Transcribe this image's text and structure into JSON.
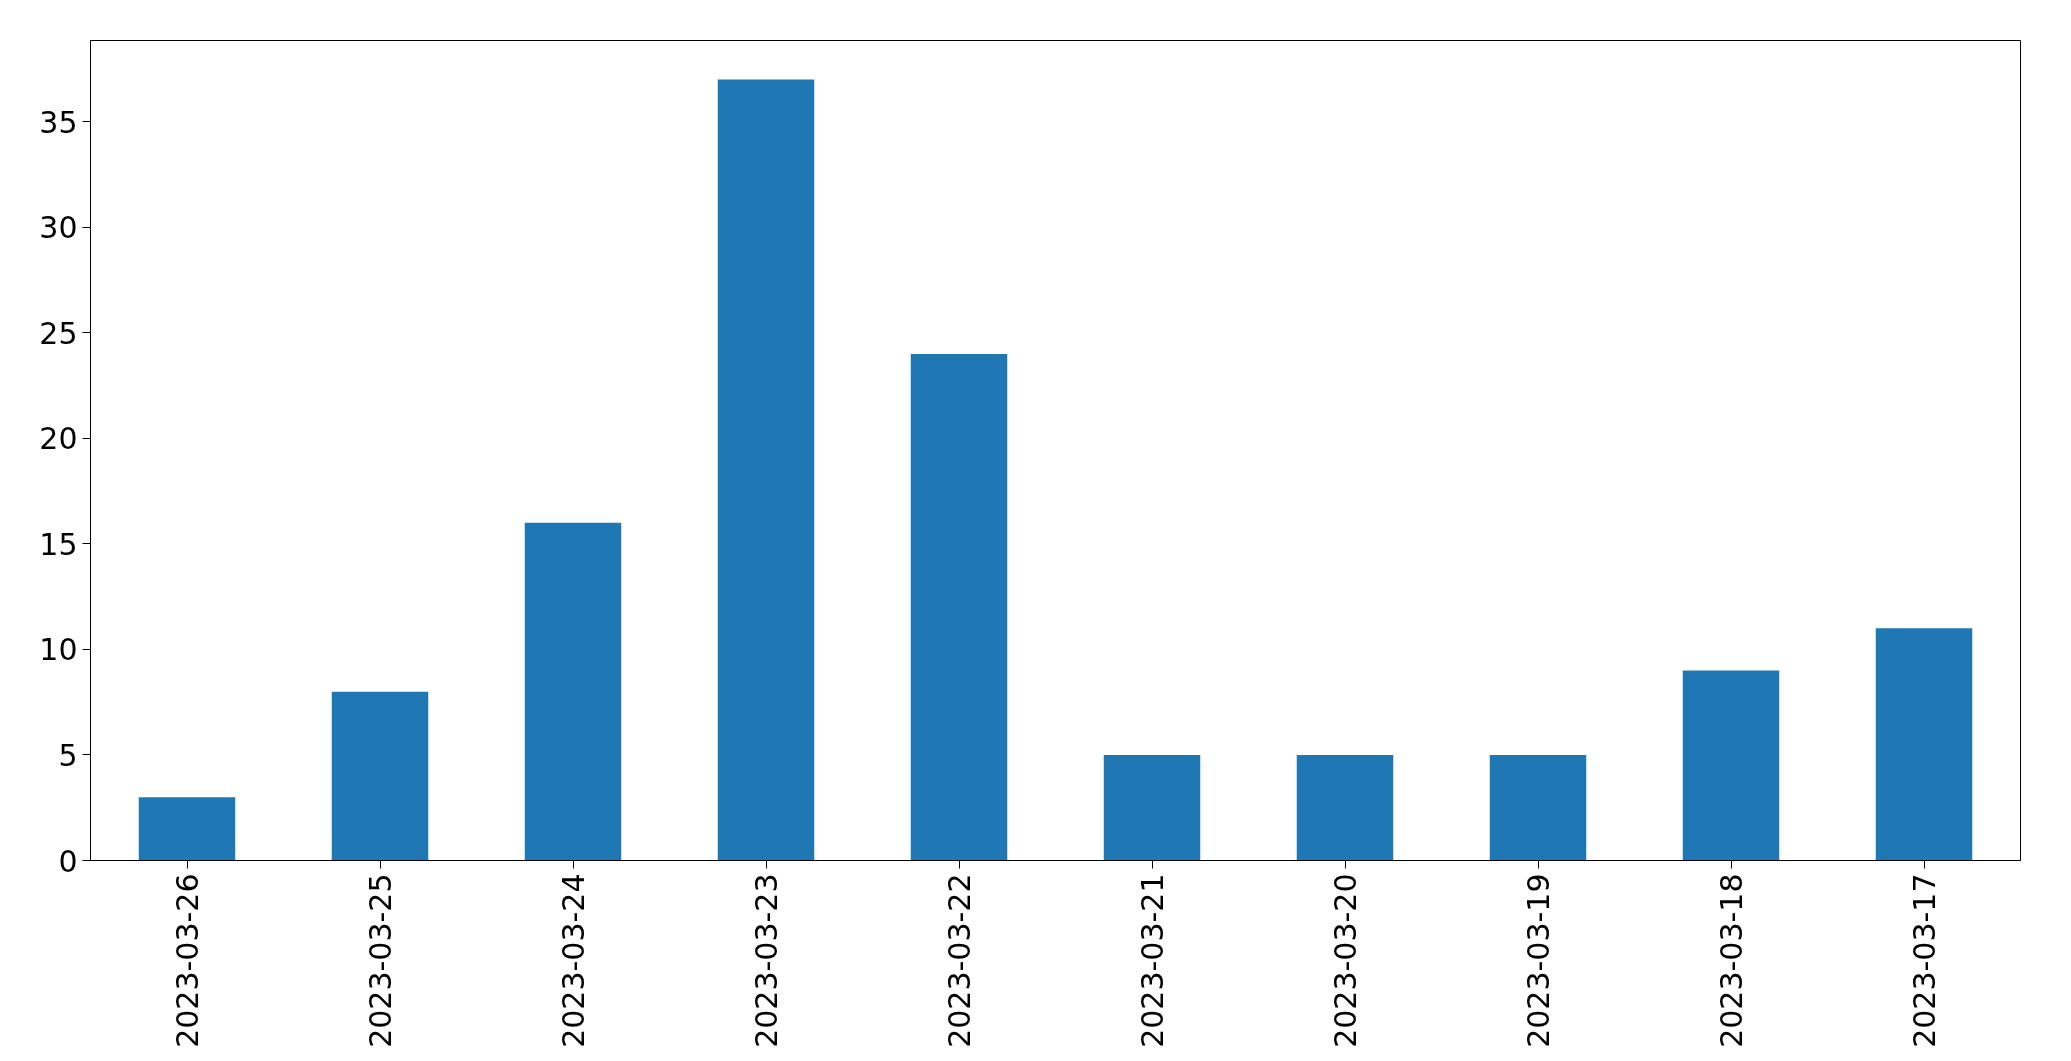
{
  "chart_data": {
    "type": "bar",
    "categories": [
      "2023-03-26",
      "2023-03-25",
      "2023-03-24",
      "2023-03-23",
      "2023-03-22",
      "2023-03-21",
      "2023-03-20",
      "2023-03-19",
      "2023-03-18",
      "2023-03-17"
    ],
    "values": [
      3,
      8,
      16,
      37,
      24,
      5,
      5,
      5,
      9,
      11
    ],
    "color": "#1f77b4",
    "ylim": [
      0,
      38.85
    ],
    "yticks": [
      0,
      5,
      10,
      15,
      20,
      25,
      30,
      35
    ],
    "grid": false
  }
}
